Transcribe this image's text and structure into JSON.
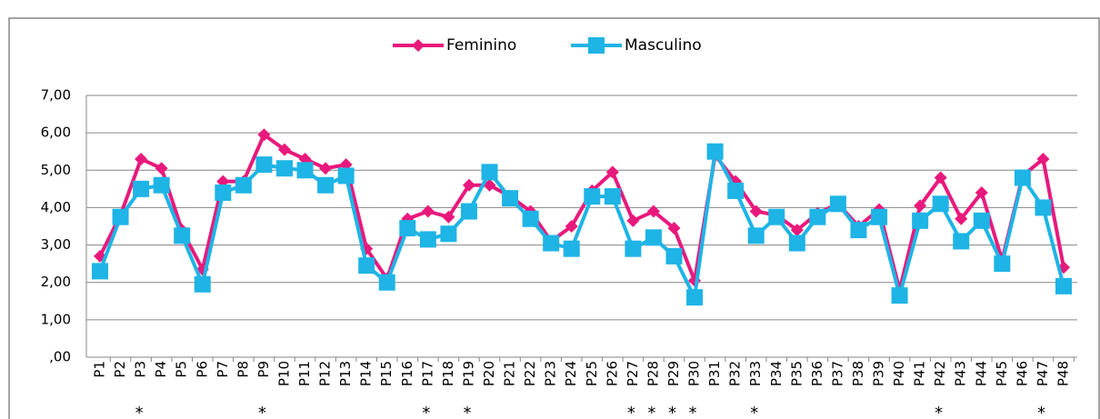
{
  "chart_data": {
    "type": "line",
    "categories": [
      "P1",
      "P2",
      "P3",
      "P4",
      "P5",
      "P6",
      "P7",
      "P8",
      "P9",
      "P10",
      "P11",
      "P12",
      "P13",
      "P14",
      "P15",
      "P16",
      "P17",
      "P18",
      "P19",
      "P20",
      "P21",
      "P22",
      "P23",
      "P24",
      "P25",
      "P26",
      "P27",
      "P28",
      "P29",
      "P30",
      "P31",
      "P32",
      "P33",
      "P34",
      "P35",
      "P36",
      "P37",
      "P38",
      "P39",
      "P40",
      "P41",
      "P42",
      "P43",
      "P44",
      "P45",
      "P46",
      "P47",
      "P48"
    ],
    "markers": [
      null,
      null,
      "*",
      null,
      null,
      null,
      null,
      null,
      "*",
      null,
      null,
      null,
      null,
      null,
      null,
      null,
      "*",
      null,
      "*",
      null,
      null,
      null,
      null,
      null,
      null,
      null,
      "*",
      "*",
      "*",
      "*",
      null,
      null,
      "*",
      null,
      null,
      null,
      null,
      null,
      null,
      null,
      null,
      "*",
      null,
      null,
      null,
      null,
      "*",
      null
    ],
    "series": [
      {
        "name": "Feminino",
        "color": "#e8197c",
        "marker": "diamond",
        "values": [
          2.7,
          3.8,
          5.3,
          5.05,
          3.4,
          2.35,
          4.7,
          4.7,
          5.95,
          5.55,
          5.3,
          5.05,
          5.15,
          2.9,
          2.1,
          3.7,
          3.9,
          3.75,
          4.6,
          4.6,
          4.3,
          3.9,
          3.1,
          3.5,
          4.45,
          4.95,
          3.65,
          3.9,
          3.45,
          2.05,
          5.4,
          4.7,
          3.9,
          3.8,
          3.4,
          3.85,
          4.1,
          3.5,
          3.95,
          1.8,
          4.05,
          4.8,
          3.7,
          4.4,
          2.6,
          4.85,
          5.3,
          2.4
        ]
      },
      {
        "name": "Masculino",
        "color": "#1eb4e6",
        "marker": "square",
        "values": [
          2.3,
          3.75,
          4.5,
          4.6,
          3.25,
          1.95,
          4.4,
          4.6,
          5.15,
          5.05,
          5.0,
          4.6,
          4.85,
          2.45,
          2.0,
          3.45,
          3.15,
          3.3,
          3.9,
          4.95,
          4.25,
          3.7,
          3.05,
          2.9,
          4.3,
          4.3,
          2.9,
          3.2,
          2.7,
          1.6,
          5.5,
          4.45,
          3.25,
          3.75,
          3.05,
          3.75,
          4.1,
          3.4,
          3.75,
          1.65,
          3.65,
          4.1,
          3.1,
          3.65,
          2.5,
          4.8,
          4.0,
          1.9
        ]
      }
    ],
    "ylim": [
      0,
      7
    ],
    "yticks": [
      {
        "value": 0,
        "label": ",00"
      },
      {
        "value": 1,
        "label": "1,00"
      },
      {
        "value": 2,
        "label": "2,00"
      },
      {
        "value": 3,
        "label": "3,00"
      },
      {
        "value": 4,
        "label": "4,00"
      },
      {
        "value": 5,
        "label": "5,00"
      },
      {
        "value": 6,
        "label": "6,00"
      },
      {
        "value": 7,
        "label": "7,00"
      }
    ],
    "grid": true,
    "legend": "top"
  }
}
